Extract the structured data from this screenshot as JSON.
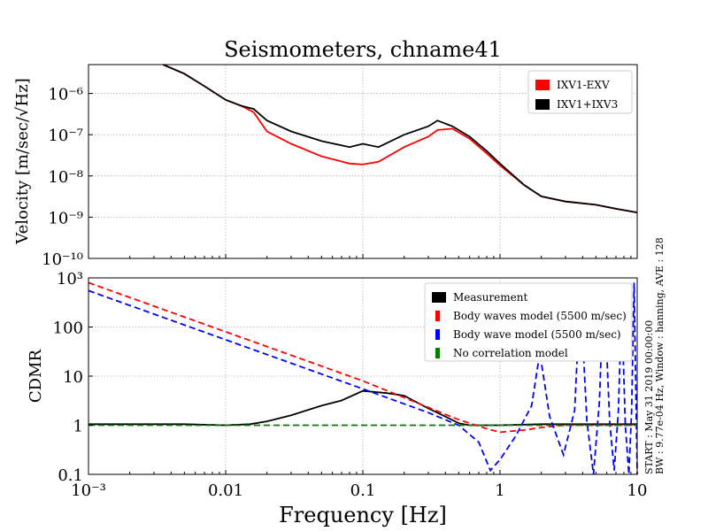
{
  "figure": {
    "title": "Seismometers, chname41",
    "xlabel": "Frequency [Hz]",
    "side_text_1": "START : May 31 2019 00:00:00",
    "side_text_2": "BW : 9.77e-04 Hz, Window : hanning, AVE : 128"
  },
  "chart_data": [
    {
      "type": "line",
      "panel": "top",
      "xscale": "log",
      "yscale": "log",
      "xlim": [
        0.001,
        10
      ],
      "ylim": [
        1e-10,
        5e-06
      ],
      "ylabel": "Velocity [m/sec/√Hz]",
      "ytick_labels": [
        "10⁻¹⁰",
        "10⁻⁹",
        "10⁻⁸",
        "10⁻⁷",
        "10⁻⁶"
      ],
      "ytick_values": [
        1e-10,
        1e-09,
        1e-08,
        1e-07,
        1e-06
      ],
      "grid": true,
      "legend_position": "top-right",
      "series": [
        {
          "name": "IXV1-EXV",
          "color": "#ff0000",
          "x": [
            0.0035,
            0.005,
            0.007,
            0.01,
            0.013,
            0.016,
            0.02,
            0.03,
            0.05,
            0.08,
            0.1,
            0.13,
            0.2,
            0.3,
            0.35,
            0.45,
            0.6,
            0.8,
            1,
            1.5,
            2,
            3,
            5,
            7,
            10
          ],
          "y": [
            5e-06,
            3e-06,
            1.5e-06,
            7e-07,
            5e-07,
            3.5e-07,
            1.2e-07,
            6e-08,
            3e-08,
            2e-08,
            1.9e-08,
            2.2e-08,
            5e-08,
            9e-08,
            1.3e-07,
            1.4e-07,
            8e-08,
            3.5e-08,
            1.8e-08,
            6e-09,
            3.2e-09,
            2.4e-09,
            2e-09,
            1.6e-09,
            1.3e-09
          ]
        },
        {
          "name": "IXV1+IXV3",
          "color": "#000000",
          "x": [
            0.0035,
            0.005,
            0.007,
            0.01,
            0.013,
            0.016,
            0.02,
            0.03,
            0.05,
            0.08,
            0.1,
            0.13,
            0.2,
            0.3,
            0.35,
            0.45,
            0.6,
            0.8,
            1,
            1.5,
            2,
            3,
            5,
            7,
            10
          ],
          "y": [
            5e-06,
            3e-06,
            1.5e-06,
            7e-07,
            5e-07,
            4.2e-07,
            2.2e-07,
            1.2e-07,
            7e-08,
            5e-08,
            6e-08,
            5e-08,
            1e-07,
            1.6e-07,
            2.2e-07,
            1.6e-07,
            9e-08,
            4e-08,
            2e-08,
            6e-09,
            3.2e-09,
            2.4e-09,
            2e-09,
            1.6e-09,
            1.3e-09
          ]
        }
      ]
    },
    {
      "type": "line",
      "panel": "bottom",
      "xscale": "log",
      "yscale": "log",
      "xlim": [
        0.001,
        10
      ],
      "ylim": [
        0.1,
        1000
      ],
      "ylabel": "CDMR",
      "xtick_labels": [
        "10⁻³",
        "0.01",
        "0.1",
        "1",
        "10"
      ],
      "xtick_values": [
        0.001,
        0.01,
        0.1,
        1,
        10
      ],
      "ytick_labels": [
        "0.1",
        "1",
        "10",
        "100",
        "10³"
      ],
      "ytick_values": [
        0.1,
        1,
        10,
        100,
        1000
      ],
      "grid": true,
      "legend_position": "top-right",
      "series": [
        {
          "name": "Measurement",
          "color": "#000000",
          "style": "solid",
          "x": [
            0.001,
            0.002,
            0.005,
            0.01,
            0.015,
            0.02,
            0.03,
            0.05,
            0.07,
            0.1,
            0.15,
            0.2,
            0.3,
            0.4,
            0.5,
            0.6,
            0.8,
            1,
            2,
            5,
            10
          ],
          "y": [
            1.05,
            1.05,
            1.05,
            1.0,
            1.05,
            1.2,
            1.6,
            2.5,
            3.2,
            5,
            4.5,
            4,
            2.2,
            1.5,
            1.1,
            1.0,
            1.0,
            1.0,
            1.05,
            1.05,
            1.05
          ]
        },
        {
          "name": "Body waves model (5500 m/sec)",
          "color": "#ff0000",
          "style": "dashed",
          "x": [
            0.001,
            0.01,
            0.1,
            0.5,
            0.8,
            1.0,
            1.5,
            2,
            3,
            5,
            7,
            10
          ],
          "y": [
            800,
            80,
            8,
            1.3,
            0.85,
            0.72,
            0.8,
            0.9,
            1.0,
            1.0,
            1.0,
            1.0
          ]
        },
        {
          "name": "Body wave model (5500 m/sec)",
          "color": "#0000ff",
          "style": "dashed",
          "x": [
            0.001,
            0.01,
            0.1,
            0.3,
            0.5,
            0.7,
            0.85,
            1.0,
            1.3,
            1.7,
            1.95,
            2.3,
            2.9,
            3.5,
            3.85,
            4.3,
            4.8,
            5.3,
            5.7,
            6.3,
            6.8,
            7.3,
            7.7,
            8.2,
            8.7,
            9.1,
            9.5,
            10
          ],
          "y": [
            550,
            55,
            5.5,
            1.8,
            1.0,
            0.45,
            0.12,
            0.2,
            0.6,
            2.5,
            30,
            1.5,
            0.25,
            2,
            500,
            1.2,
            0.1,
            3,
            800,
            1.2,
            0.12,
            2,
            300,
            1.0,
            0.1,
            2,
            800,
            0.1
          ]
        },
        {
          "name": "No correlation model",
          "color": "#008000",
          "style": "dashed",
          "x": [
            0.001,
            10
          ],
          "y": [
            1.0,
            1.0
          ]
        }
      ]
    }
  ]
}
